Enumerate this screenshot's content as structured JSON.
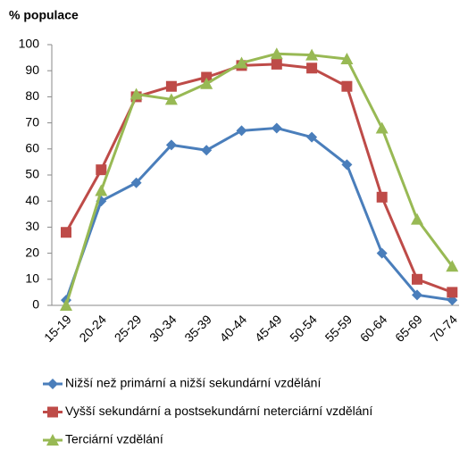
{
  "chart_data": {
    "type": "line",
    "title": "% populace",
    "categories": [
      "15-19",
      "20-24",
      "25-29",
      "30-34",
      "35-39",
      "40-44",
      "45-49",
      "50-54",
      "55-59",
      "60-64",
      "65-69",
      "70-74"
    ],
    "series": [
      {
        "name": "Nižší než primární a nižší sekundární vzdělání",
        "color": "#4a7ebb",
        "marker": "diamond",
        "values": [
          2,
          40,
          47,
          61.5,
          59.5,
          67,
          68,
          64.5,
          54,
          20,
          4,
          2
        ]
      },
      {
        "name": "Vyšší sekundární a postsekundární neterciární vzdělání",
        "color": "#be4b48",
        "marker": "square",
        "values": [
          28,
          52,
          80,
          84,
          87.5,
          92,
          92.5,
          91,
          84,
          41.5,
          10,
          5
        ]
      },
      {
        "name": "Terciární vzdělání",
        "color": "#98b954",
        "marker": "triangle",
        "values": [
          0,
          44,
          81,
          79,
          85,
          93,
          96.5,
          96,
          94.5,
          68,
          33,
          15
        ]
      }
    ],
    "ylim": [
      0,
      100
    ],
    "yticks": [
      0,
      10,
      20,
      30,
      40,
      50,
      60,
      70,
      80,
      90,
      100
    ],
    "grid": false,
    "legend": "bottom"
  }
}
